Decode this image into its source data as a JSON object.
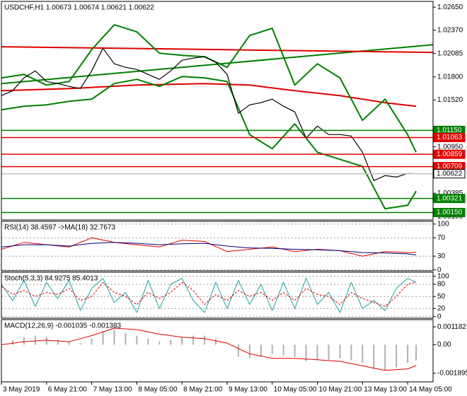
{
  "chart_data": [
    {
      "type": "line",
      "title": "USDCHF,H1 1.00673 1.00674 1.00621 1.00622",
      "xlim": [
        0,
        153
      ],
      "ylim": [
        1.0006,
        1.0272
      ],
      "yticks": [
        {
          "value": 1.0265,
          "label": "1.02650"
        },
        {
          "value": 1.0237,
          "label": "1.02370"
        },
        {
          "value": 1.02085,
          "label": "1.02085"
        },
        {
          "value": 1.018,
          "label": "1.01800"
        },
        {
          "value": 1.0152,
          "label": "1.01520"
        },
        {
          "value": 1.0095,
          "label": "1.00950"
        },
        {
          "value": 1.00385,
          "label": "1.00385"
        },
        {
          "value": 1.001,
          "label": "1.00100"
        }
      ],
      "levels": [
        {
          "value": 1.0115,
          "label": "1.01150",
          "color": "#008000",
          "label_color": "#ffffff"
        },
        {
          "value": 1.01063,
          "label": "1.01063",
          "color": "#e00000",
          "label_color": "#ffffff"
        },
        {
          "value": 1.00859,
          "label": "1.00859",
          "color": "#e00000",
          "label_color": "#ffffff"
        },
        {
          "value": 1.00709,
          "label": "1.00709",
          "color": "#e00000",
          "label_color": "#ffffff"
        },
        {
          "value": 1.00622,
          "label": "1.00622",
          "color": "#c0c0c0",
          "label_color": "#000000"
        },
        {
          "value": 1.00321,
          "label": "1.00321",
          "color": "#008000",
          "label_color": "#ffffff"
        },
        {
          "value": 1.0015,
          "label": "1.00150",
          "color": "#008000",
          "label_color": "#ffffff"
        }
      ],
      "series": [
        {
          "color": "#008000",
          "width": 2,
          "x": [
            0,
            153
          ],
          "values": [
            1.0172,
            1.02193
          ]
        },
        {
          "color": "#e00000",
          "width": 2,
          "x": [
            0,
            153
          ],
          "values": [
            1.02168,
            1.02099
          ]
        },
        {
          "color": "#e00000",
          "width": 2,
          "x": [
            0,
            24,
            48,
            72,
            88,
            104,
            120,
            136,
            147
          ],
          "values": [
            1.01633,
            1.01659,
            1.01702,
            1.0172,
            1.01702,
            1.01633,
            1.01573,
            1.01487,
            1.01444
          ]
        },
        {
          "color": "#008000",
          "width": 2,
          "x": [
            0,
            8,
            16,
            24,
            32,
            40,
            48,
            56,
            64,
            72,
            80,
            88,
            96,
            104,
            112,
            120,
            128,
            136,
            144,
            147
          ],
          "values": [
            1.01789,
            1.01832,
            1.01702,
            1.01745,
            1.02133,
            1.02435,
            1.02349,
            1.0209,
            1.02064,
            1.02047,
            1.01918,
            1.02305,
            1.02392,
            1.01702,
            1.01961,
            1.01789,
            1.01272,
            1.0153,
            1.01099,
            1.00884
          ]
        },
        {
          "color": "#008000",
          "width": 2,
          "x": [
            0,
            8,
            16,
            24,
            32,
            40,
            48,
            56,
            64,
            72,
            80,
            88,
            96,
            104,
            112,
            120,
            128,
            136,
            144,
            147
          ],
          "values": [
            1.01401,
            1.01444,
            1.01461,
            1.01504,
            1.0153,
            1.0172,
            1.01771,
            1.01685,
            1.01806,
            1.01789,
            1.01745,
            1.01099,
            1.00927,
            1.01229,
            1.00884,
            1.00798,
            1.00712,
            1.00195,
            1.00238,
            1.0041
          ]
        },
        {
          "color": "#000000",
          "width": 1.2,
          "x": [
            0,
            4,
            8,
            12,
            16,
            20,
            24,
            28,
            32,
            36,
            40,
            44,
            48,
            52,
            56,
            60,
            64,
            68,
            72,
            76,
            80,
            84,
            88,
            92,
            96,
            100,
            104,
            108,
            112,
            116,
            120,
            124,
            128,
            132,
            136,
            140,
            144,
            147
          ],
          "values": [
            1.01573,
            1.01633,
            1.01789,
            1.01875,
            1.01745,
            1.0172,
            1.01685,
            1.01659,
            1.01875,
            1.0215,
            1.01961,
            1.01918,
            1.01892,
            1.01832,
            1.01771,
            1.01875,
            1.02004,
            1.0203,
            1.02047,
            1.01978,
            1.01832,
            1.01358,
            1.01461,
            1.01487,
            1.0153,
            1.01444,
            1.01375,
            1.01056,
            1.01203,
            1.01099,
            1.01099,
            1.01082,
            1.00884,
            1.00539,
            1.006,
            1.00582,
            1.00626,
            1.00622
          ]
        }
      ]
    },
    {
      "type": "line",
      "title": "RSI(14) 38.4597 ->MA(18) 32.7673",
      "xlim": [
        0,
        153
      ],
      "ylim": [
        -2,
        106
      ],
      "yticks": [
        100,
        70,
        30,
        0
      ],
      "grid": true,
      "series": [
        {
          "color": "#e00000",
          "width": 1,
          "x": [
            0,
            8,
            16,
            24,
            32,
            40,
            48,
            56,
            64,
            72,
            80,
            88,
            96,
            104,
            112,
            120,
            128,
            136,
            144,
            147
          ],
          "values": [
            45,
            60,
            55,
            50,
            70,
            60,
            55,
            50,
            65,
            62,
            40,
            45,
            50,
            40,
            45,
            42,
            30,
            40,
            38,
            38.4597
          ]
        },
        {
          "color": "#000080",
          "width": 1,
          "x": [
            0,
            8,
            16,
            24,
            32,
            40,
            48,
            56,
            64,
            72,
            80,
            88,
            96,
            104,
            112,
            120,
            128,
            136,
            144,
            147
          ],
          "values": [
            50,
            55,
            55,
            52,
            58,
            60,
            58,
            55,
            57,
            58,
            52,
            48,
            47,
            45,
            44,
            42,
            38,
            37,
            35,
            32.7673
          ]
        }
      ]
    },
    {
      "type": "line",
      "title": "Stoch(5,3,3) 84.9275 85.4013",
      "xlim": [
        0,
        153
      ],
      "ylim": [
        -4,
        110
      ],
      "yticks": [
        100,
        80,
        50,
        20,
        0
      ],
      "grid": true,
      "series": [
        {
          "color": "#20a0a0",
          "width": 1,
          "x": [
            0,
            4,
            8,
            12,
            16,
            20,
            24,
            28,
            32,
            36,
            40,
            44,
            48,
            52,
            56,
            60,
            64,
            68,
            72,
            76,
            80,
            84,
            88,
            92,
            96,
            100,
            104,
            108,
            112,
            116,
            120,
            124,
            128,
            132,
            136,
            140,
            144,
            147
          ],
          "values": [
            80,
            40,
            90,
            25,
            85,
            45,
            90,
            15,
            70,
            95,
            35,
            60,
            10,
            90,
            20,
            80,
            95,
            40,
            10,
            85,
            20,
            90,
            30,
            80,
            15,
            85,
            20,
            95,
            30,
            60,
            10,
            85,
            20,
            40,
            15,
            70,
            95,
            84.9275
          ]
        },
        {
          "color": "#e00000",
          "width": 1,
          "dash": true,
          "x": [
            0,
            4,
            8,
            12,
            16,
            20,
            24,
            28,
            32,
            36,
            40,
            44,
            48,
            52,
            56,
            60,
            64,
            68,
            72,
            76,
            80,
            84,
            88,
            92,
            96,
            100,
            104,
            108,
            112,
            116,
            120,
            124,
            128,
            132,
            136,
            140,
            144,
            147
          ],
          "values": [
            75,
            55,
            65,
            50,
            60,
            55,
            70,
            40,
            50,
            85,
            60,
            50,
            30,
            60,
            45,
            60,
            85,
            65,
            30,
            55,
            40,
            65,
            50,
            60,
            40,
            60,
            40,
            70,
            55,
            50,
            30,
            60,
            45,
            35,
            25,
            50,
            80,
            85.4013
          ]
        }
      ]
    },
    {
      "type": "line",
      "title": "MACD(12,26,9) -0.001035 -0.001383",
      "xlim": [
        0,
        153
      ],
      "ylim": [
        -0.00246,
        0.00166
      ],
      "yticks": [
        {
          "value": 0.001182,
          "label": "0.001182"
        },
        {
          "value": 0,
          "label": "0.00"
        },
        {
          "value": -0.001895,
          "label": "-0.001895"
        }
      ],
      "xticks": [
        {
          "value": 0,
          "label": "3 May 2019"
        },
        {
          "value": 16,
          "label": "6 May 21:00"
        },
        {
          "value": 32,
          "label": "7 May 13:00"
        },
        {
          "value": 48,
          "label": "8 May 05:00"
        },
        {
          "value": 64,
          "label": "8 May 21:00"
        },
        {
          "value": 80,
          "label": "9 May 13:00"
        },
        {
          "value": 96,
          "label": "10 May 05:00"
        },
        {
          "value": 112,
          "label": "10 May 21:00"
        },
        {
          "value": 128,
          "label": "13 May 13:00"
        },
        {
          "value": 144,
          "label": "14 May 05:00"
        }
      ],
      "series": [
        {
          "color": "#b0b0b0",
          "histogram": true,
          "x": [
            0,
            4,
            8,
            12,
            16,
            20,
            24,
            28,
            32,
            36,
            40,
            44,
            48,
            52,
            56,
            60,
            64,
            68,
            72,
            76,
            80,
            84,
            88,
            92,
            96,
            100,
            104,
            108,
            112,
            116,
            120,
            124,
            128,
            132,
            136,
            140,
            144,
            147
          ],
          "values": [
            0,
            0.0003,
            0.0005,
            0.0006,
            0.0005,
            0.0003,
            0.0002,
            0.0001,
            0.0004,
            0.0009,
            0.001,
            0.0008,
            0.0006,
            0.0004,
            0.0002,
            0.0003,
            0.0005,
            0.0006,
            0.0006,
            0.0004,
            0,
            -0.0008,
            -0.0009,
            -0.0008,
            -0.0006,
            -0.0007,
            -0.0008,
            -0.0011,
            -0.001,
            -0.001,
            -0.0009,
            -0.001,
            -0.0012,
            -0.0016,
            -0.0017,
            -0.0015,
            -0.0012,
            -0.001035
          ]
        },
        {
          "color": "#e00000",
          "width": 1,
          "x": [
            0,
            8,
            16,
            24,
            32,
            40,
            48,
            56,
            64,
            72,
            80,
            88,
            96,
            104,
            112,
            120,
            128,
            136,
            144,
            147
          ],
          "values": [
            0,
            0.0002,
            0.0003,
            0.0002,
            0.0006,
            0.0011,
            0.001,
            0.0007,
            0.0005,
            0.0004,
            0.0001,
            -0.0006,
            -0.0009,
            -0.0009,
            -0.001,
            -0.0011,
            -0.0014,
            -0.0017,
            -0.0016,
            -0.001383
          ]
        }
      ]
    }
  ]
}
